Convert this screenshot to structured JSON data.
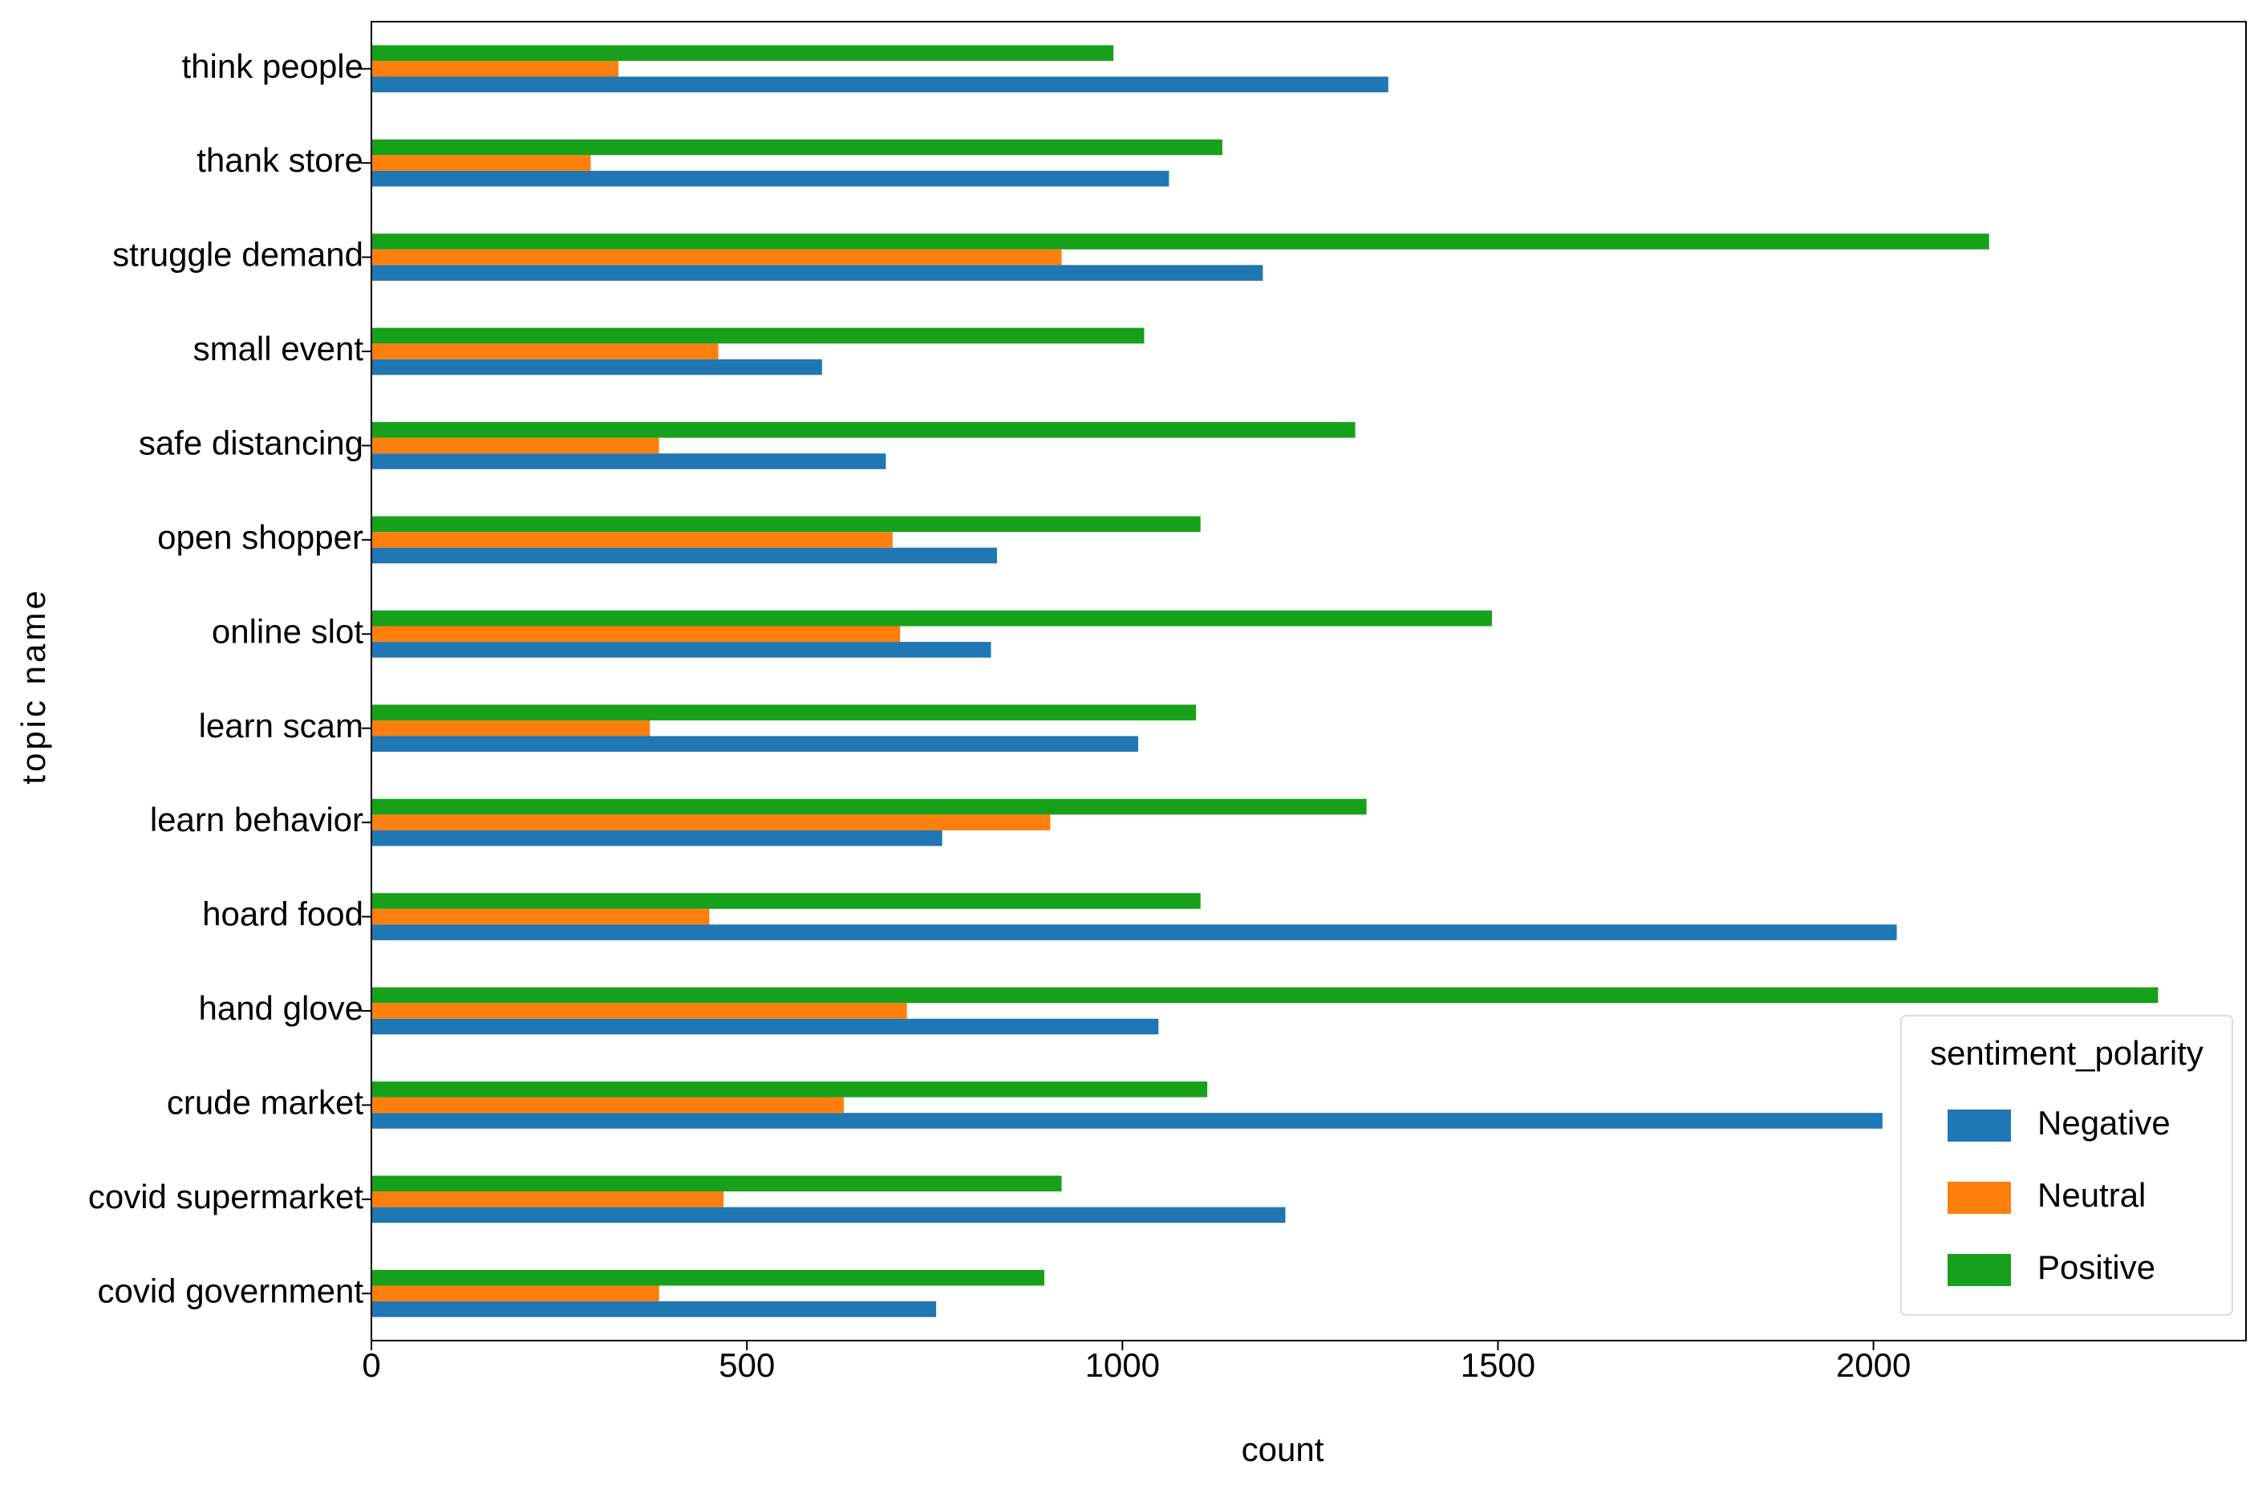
{
  "chart_data": {
    "type": "barh",
    "xlabel": "count",
    "ylabel": "topic name",
    "categories": [
      "think people",
      "thank store",
      "struggle demand",
      "small event",
      "safe distancing",
      "open shopper",
      "online slot",
      "learn scam",
      "learn behavior",
      "hoard food",
      "hand glove",
      "crude market",
      "covid supermarket",
      "covid government"
    ],
    "series": [
      {
        "name": "Negative",
        "color": "#1f77b4",
        "values": [
          1354,
          1062,
          1187,
          600,
          685,
          833,
          825,
          1021,
          760,
          2031,
          1048,
          2012,
          1217,
          752
        ]
      },
      {
        "name": "Neutral",
        "color": "#ff7f0e",
        "values": [
          329,
          292,
          919,
          462,
          383,
          694,
          704,
          371,
          904,
          450,
          713,
          629,
          469,
          383
        ]
      },
      {
        "name": "Positive",
        "color": "#17a01a",
        "values": [
          988,
          1133,
          2154,
          1029,
          1310,
          1104,
          1492,
          1098,
          1325,
          1104,
          2379,
          1113,
          919,
          896
        ]
      }
    ],
    "xlim": [
      0,
      2496
    ],
    "xticks": [
      0,
      500,
      1000,
      1500,
      2000
    ],
    "grid": false,
    "legend": {
      "title": "sentiment_polarity",
      "position": "lower right"
    }
  }
}
